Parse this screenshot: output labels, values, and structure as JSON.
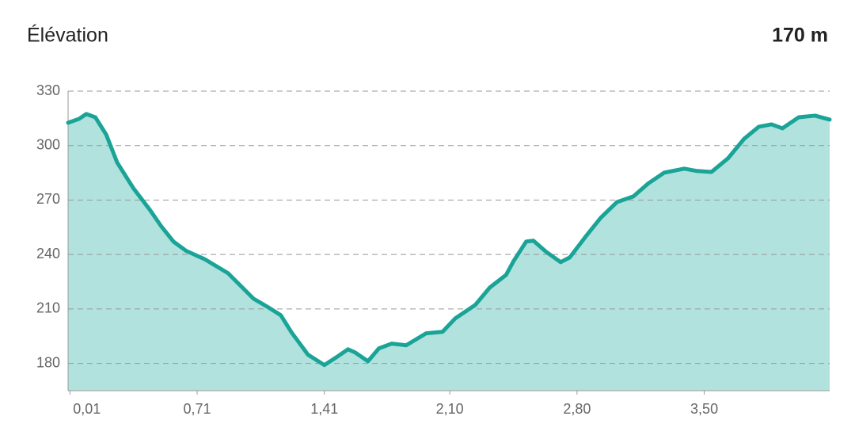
{
  "chart_data": {
    "type": "area",
    "title": "Élévation",
    "annotation": "170 m",
    "x": [
      0,
      0.06,
      0.1,
      0.15,
      0.21,
      0.27,
      0.36,
      0.45,
      0.51,
      0.58,
      0.65,
      0.75,
      0.88,
      1.02,
      1.1,
      1.17,
      1.23,
      1.32,
      1.41,
      1.47,
      1.54,
      1.58,
      1.65,
      1.71,
      1.78,
      1.86,
      1.97,
      2.06,
      2.13,
      2.24,
      2.32,
      2.41,
      2.45,
      2.52,
      2.56,
      2.63,
      2.71,
      2.76,
      2.85,
      2.93,
      3.02,
      3.11,
      3.19,
      3.28,
      3.39,
      3.46,
      3.54,
      3.63,
      3.72,
      3.8,
      3.87,
      3.93,
      4.02,
      4.11,
      4.19
    ],
    "values": [
      312.6,
      314.7,
      317.4,
      315.6,
      306,
      290.7,
      276.4,
      264.6,
      255.9,
      247.1,
      242,
      237.5,
      229.7,
      215.7,
      211,
      206.6,
      197,
      184.8,
      179.1,
      183,
      187.8,
      186,
      181.2,
      188.3,
      190.9,
      190,
      196.6,
      197.4,
      204.8,
      212.2,
      221.8,
      228.8,
      236.2,
      247.1,
      247.6,
      241.5,
      235.8,
      238.4,
      250.2,
      260.2,
      268.9,
      272,
      279,
      285.1,
      287.3,
      286,
      285.5,
      292.9,
      303.8,
      310.4,
      311.7,
      309.5,
      315.6,
      316.5,
      314.3
    ],
    "color": "#1aa497",
    "fill": "#b1e2dd",
    "xlim": [
      0,
      4.19
    ],
    "ylim": [
      165,
      330
    ],
    "xticks": [
      {
        "value": 0.01,
        "label": "0,01"
      },
      {
        "value": 0.71,
        "label": "0,71"
      },
      {
        "value": 1.41,
        "label": "1,41"
      },
      {
        "value": 2.1,
        "label": "2,10"
      },
      {
        "value": 2.8,
        "label": "2,80"
      },
      {
        "value": 3.5,
        "label": "3,50"
      }
    ],
    "yticks": [
      180,
      210,
      240,
      270,
      300,
      330
    ],
    "grid": true
  }
}
